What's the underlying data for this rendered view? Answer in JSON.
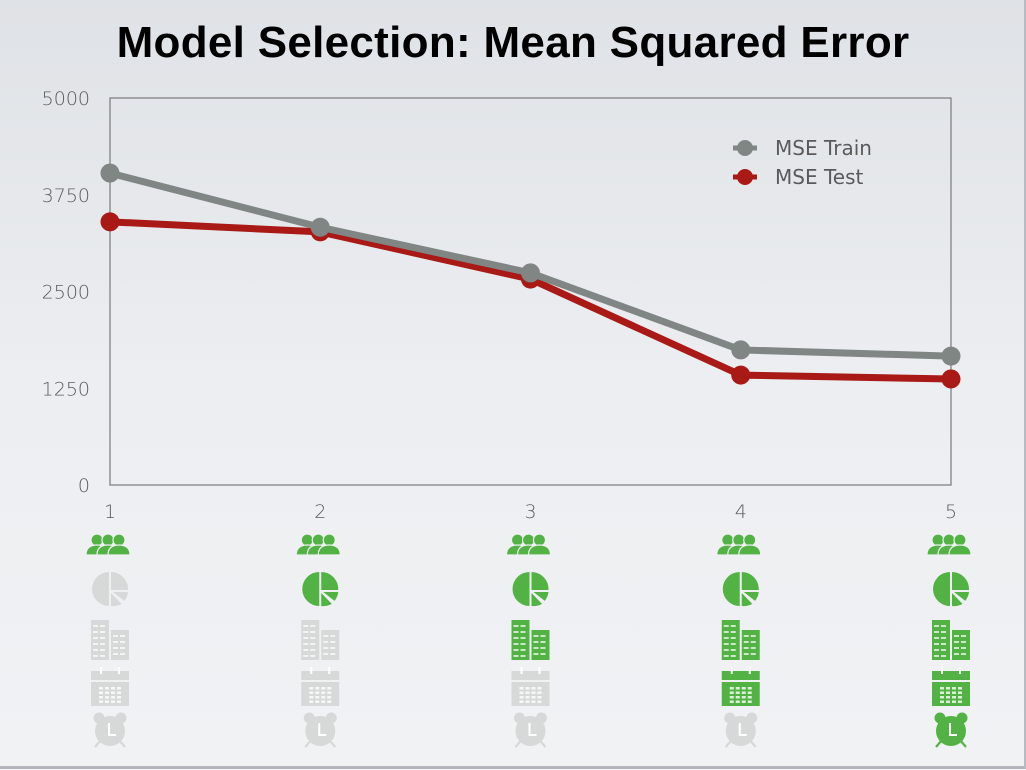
{
  "title": "Model Selection: Mean Squared Error",
  "colors": {
    "train": "#7f8684",
    "test": "#a91915",
    "icon_active": "#52b344",
    "icon_inactive": "#d7d8d8",
    "axis": "#7a7a7a"
  },
  "legend": {
    "items": [
      {
        "label": "MSE Train",
        "color": "#7f8684"
      },
      {
        "label": "MSE Test",
        "color": "#a91915"
      }
    ]
  },
  "axes": {
    "y_ticks": [
      "5000",
      "3750",
      "2500",
      "1250",
      "0"
    ],
    "x_ticks": [
      "1",
      "2",
      "3",
      "4",
      "5"
    ]
  },
  "chart_data": {
    "type": "line",
    "title": "Model Selection: Mean Squared Error",
    "xlabel": "",
    "ylabel": "",
    "x": [
      1,
      2,
      3,
      4,
      5
    ],
    "categories": [
      "1",
      "2",
      "3",
      "4",
      "5"
    ],
    "ylim": [
      0,
      5000
    ],
    "yticks": [
      0,
      1250,
      2500,
      3750,
      5000
    ],
    "grid": false,
    "legend_position": "upper right",
    "series": [
      {
        "name": "MSE Train",
        "color": "#7f8684",
        "values": [
          4030,
          3330,
          2740,
          1745,
          1665
        ]
      },
      {
        "name": "MSE Test",
        "color": "#a91915",
        "values": [
          3400,
          3270,
          2660,
          1420,
          1370
        ]
      }
    ],
    "annotations": "Feature icons below each model: people, pie chart, buildings, calendar, alarm clock — green when included in the model, gray when excluded"
  },
  "feature_icons": {
    "types": [
      "people-icon",
      "pie-chart-icon",
      "buildings-icon",
      "calendar-icon",
      "alarm-clock-icon"
    ],
    "models": [
      {
        "model": "1",
        "active": [
          true,
          false,
          false,
          false,
          false
        ]
      },
      {
        "model": "2",
        "active": [
          true,
          true,
          false,
          false,
          false
        ]
      },
      {
        "model": "3",
        "active": [
          true,
          true,
          true,
          false,
          false
        ]
      },
      {
        "model": "4",
        "active": [
          true,
          true,
          true,
          true,
          false
        ]
      },
      {
        "model": "5",
        "active": [
          true,
          true,
          true,
          true,
          true
        ]
      }
    ]
  }
}
